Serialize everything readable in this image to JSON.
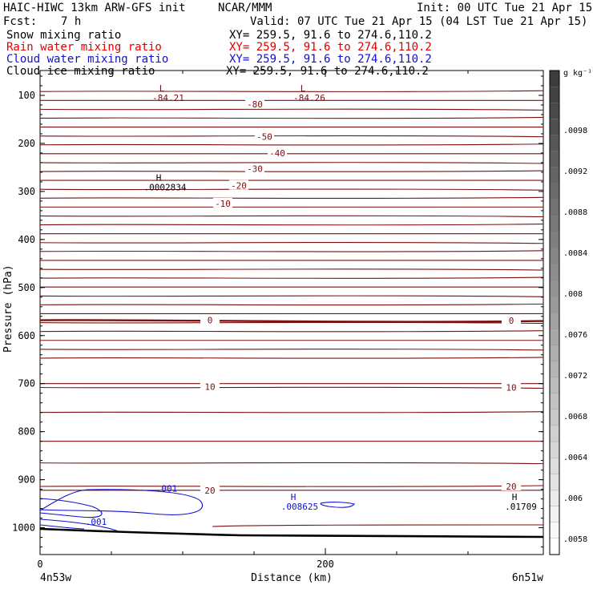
{
  "header": {
    "title": "HAIC-HIWC 13km ARW-GFS init",
    "org": "NCAR/MMM",
    "init": "Init: 00 UTC Tue 21 Apr 15",
    "fcst_label": "Fcst:",
    "fcst_value": "7 h",
    "valid": "Valid: 07 UTC Tue 21 Apr 15 (04 LST Tue 21 Apr 15)"
  },
  "legend": [
    {
      "name": "Snow mixing ratio",
      "xy": "XY= 259.5, 91.6 to 274.6,110.2",
      "color": "#000000"
    },
    {
      "name": "Rain water mixing ratio",
      "xy": "XY= 259.5, 91.6 to 274.6,110.2",
      "color": "#e00000"
    },
    {
      "name": "Cloud water mixing ratio",
      "xy": "XY= 259.5, 91.6 to 274.6,110.2",
      "color": "#0000e0"
    },
    {
      "name": "Cloud ice mixing ratio",
      "xy": "XY= 259.5, 91.6 to 274.6,110.2",
      "color": "#000000"
    }
  ],
  "colorbar": {
    "unit": "g kg⁻¹",
    "labels": [
      ".0098",
      ".0092",
      ".0088",
      ".0084",
      ".008",
      ".0076",
      ".0072",
      ".0068",
      ".0064",
      ".006",
      ".0058"
    ]
  },
  "chart_data": {
    "type": "contour",
    "xlabel": "Distance (km)",
    "ylabel": "Pressure (hPa)",
    "xlim": [
      0,
      300
    ],
    "ylim": [
      1050,
      50
    ],
    "x_ticks": [
      "0",
      "200"
    ],
    "x_endpoints": [
      "4n53w",
      "6n51w"
    ],
    "y_ticks": [
      "100",
      "200",
      "300",
      "400",
      "500",
      "600",
      "700",
      "800",
      "900",
      "1000"
    ],
    "temperature_contours": [
      {
        "label": "-80",
        "label_x": 134,
        "p": 118
      },
      {
        "label": "-50",
        "label_x": 140,
        "p": 186
      },
      {
        "label": "-40",
        "label_x": 148,
        "p": 220
      },
      {
        "label": "-30",
        "label_x": 134,
        "p": 253
      },
      {
        "label": "-20",
        "label_x": 124,
        "p": 288
      },
      {
        "label": "-10",
        "label_x": 114,
        "p": 325
      },
      {
        "label": "0",
        "label_x": 106,
        "p": 568
      },
      {
        "label": "0",
        "label_x": 294,
        "p": 569
      },
      {
        "label": "10",
        "label_x": 106,
        "p": 706
      },
      {
        "label": "10",
        "label_x": 294,
        "p": 708
      },
      {
        "label": "20",
        "label_x": 106,
        "p": 922
      },
      {
        "label": "20",
        "label_x": 294,
        "p": 914
      }
    ],
    "extrema": [
      {
        "type": "L",
        "value": "-84.21",
        "x": 76,
        "p": 92
      },
      {
        "type": "L",
        "value": "-84.26",
        "x": 164,
        "p": 92
      },
      {
        "type": "H",
        "value": ".0002834",
        "x": 74,
        "p": 278
      },
      {
        "type": "H",
        "value": ".008625",
        "x": 158,
        "p": 942
      },
      {
        "type": "H",
        "value": ".01709",
        "x": 296,
        "p": 942
      }
    ],
    "cloud_water_labels": [
      {
        "label": ".001",
        "x": 74,
        "p": 918
      },
      {
        "label": ".001",
        "x": 30,
        "p": 987
      }
    ]
  }
}
